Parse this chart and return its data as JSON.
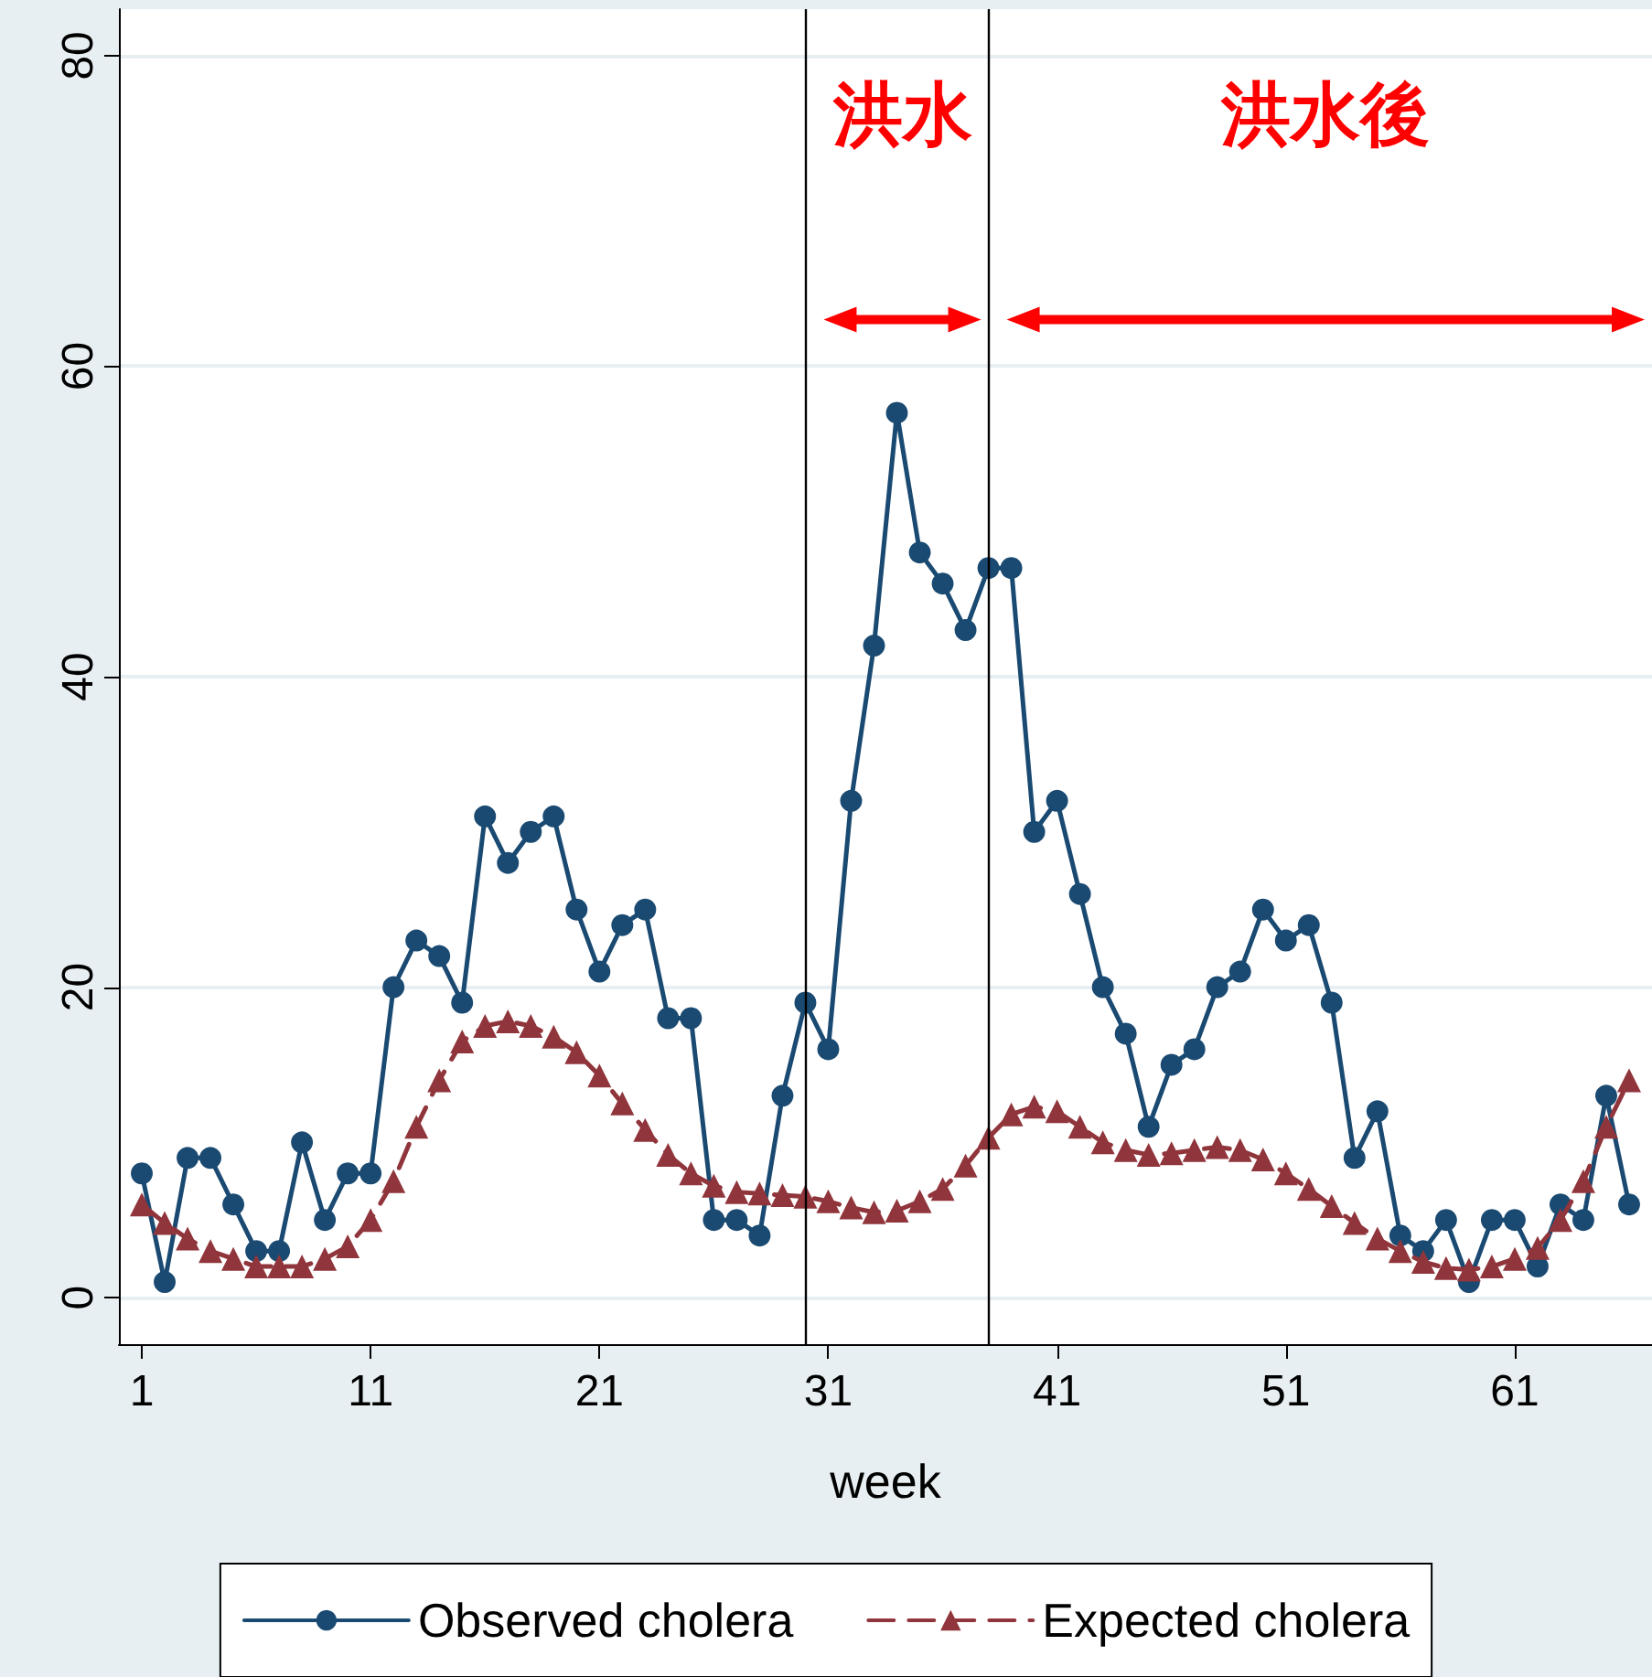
{
  "chart_data": {
    "type": "line",
    "xlabel": "week",
    "x": [
      1,
      2,
      3,
      4,
      5,
      6,
      7,
      8,
      9,
      10,
      11,
      12,
      13,
      14,
      15,
      16,
      17,
      18,
      19,
      20,
      21,
      22,
      23,
      24,
      25,
      26,
      27,
      28,
      29,
      30,
      31,
      32,
      33,
      34,
      35,
      36,
      37,
      38,
      39,
      40,
      41,
      42,
      43,
      44,
      45,
      46,
      47,
      48,
      49,
      50,
      51,
      52,
      53,
      54,
      55,
      56,
      57,
      58,
      59,
      60,
      61,
      62,
      63,
      64,
      65,
      66
    ],
    "series": [
      {
        "name": "Observed cholera",
        "color": "#1a4a72",
        "marker": "circle",
        "line_style": "solid",
        "values": [
          8,
          1,
          9,
          9,
          6,
          3,
          3,
          10,
          5,
          8,
          8,
          20,
          23,
          22,
          19,
          31,
          28,
          30,
          31,
          25,
          21,
          24,
          25,
          18,
          18,
          5,
          5,
          4,
          13,
          19,
          16,
          32,
          42,
          57,
          48,
          46,
          43,
          47,
          47,
          30,
          32,
          26,
          20,
          17,
          11,
          15,
          16,
          20,
          21,
          25,
          23,
          24,
          19,
          9,
          12,
          4,
          3,
          5,
          1,
          5,
          5,
          2,
          6,
          5,
          13,
          6
        ]
      },
      {
        "name": "Expected cholera",
        "color": "#90353b",
        "marker": "triangle",
        "line_style": "dashed",
        "values": [
          6,
          4.8,
          3.8,
          3,
          2.5,
          2,
          2,
          2,
          2.5,
          3.3,
          5,
          7.5,
          11,
          14,
          16.5,
          17.5,
          17.8,
          17.5,
          16.8,
          15.8,
          14.3,
          12.5,
          10.8,
          9.2,
          8,
          7.2,
          6.8,
          6.7,
          6.6,
          6.5,
          6.2,
          5.8,
          5.5,
          5.6,
          6.2,
          7,
          8.5,
          10.3,
          11.8,
          12.3,
          12,
          11,
          10,
          9.5,
          9.2,
          9.3,
          9.5,
          9.7,
          9.5,
          8.9,
          8,
          7,
          5.9,
          4.8,
          3.8,
          3,
          2.3,
          1.9,
          1.8,
          2,
          2.5,
          3.2,
          5,
          7.5,
          11,
          14
        ]
      }
    ],
    "xlim": [
      0,
      67
    ],
    "xticks": [
      1,
      11,
      21,
      31,
      41,
      51,
      61
    ],
    "ylim": [
      -3,
      83
    ],
    "yticks": [
      0,
      20,
      40,
      60,
      80
    ],
    "grid": "y",
    "legend": "bottom",
    "ref_lines": [
      {
        "axis": "x",
        "value": 30,
        "color": "#000000"
      },
      {
        "axis": "x",
        "value": 38,
        "color": "#000000"
      }
    ],
    "annotations": [
      "洪水",
      "洪水後"
    ]
  }
}
